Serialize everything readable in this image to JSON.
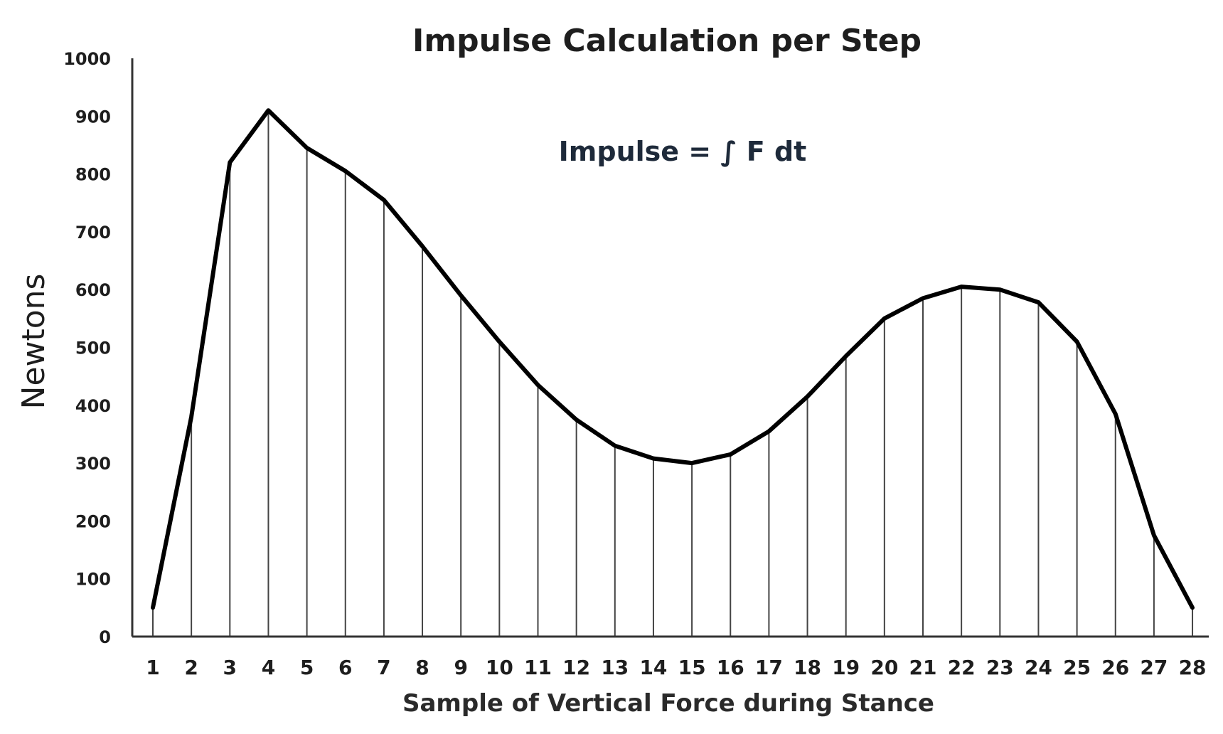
{
  "chart_data": {
    "type": "line",
    "title": "Impulse Calculation per Step",
    "annotation": "Impulse = ∫ F dt",
    "xlabel": "Sample of Vertical  Force during Stance",
    "ylabel": "Newtons",
    "ylim": [
      0,
      1000
    ],
    "yticks": [
      "0",
      "100",
      "200",
      "300",
      "400",
      "500",
      "600",
      "700",
      "800",
      "900",
      "1000"
    ],
    "x": [
      "1",
      "2",
      "3",
      "4",
      "5",
      "6",
      "7",
      "8",
      "9",
      "10",
      "11",
      "12",
      "13",
      "14",
      "15",
      "16",
      "17",
      "18",
      "19",
      "20",
      "21",
      "22",
      "23",
      "24",
      "25",
      "26",
      "27",
      "28"
    ],
    "values": [
      50,
      380,
      820,
      910,
      845,
      805,
      755,
      675,
      590,
      510,
      435,
      375,
      330,
      308,
      300,
      315,
      355,
      415,
      485,
      550,
      585,
      605,
      600,
      578,
      510,
      385,
      175,
      50
    ],
    "drop_lines": true,
    "grid": false,
    "colors": {
      "line": "#000000",
      "stems": "#444444",
      "ylabel": "#1e1e1e"
    }
  }
}
